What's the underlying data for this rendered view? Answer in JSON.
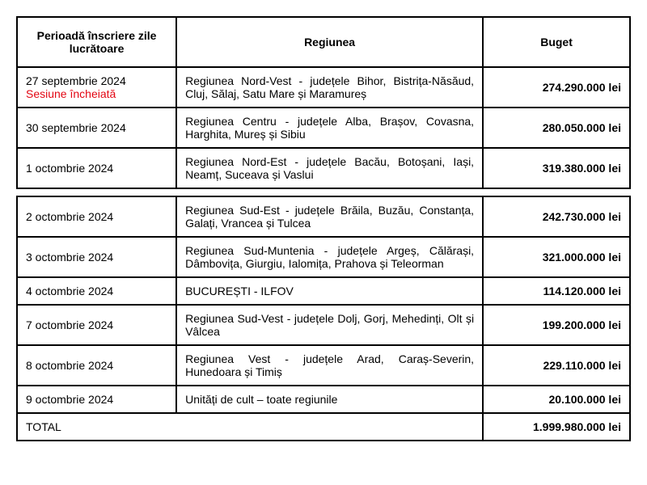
{
  "table": {
    "headers": {
      "period": "Perioadă înscriere zile lucrătoare",
      "region": "Regiunea",
      "budget": "Buget"
    },
    "columns": {
      "period_width": "26%",
      "region_width": "50%",
      "budget_width": "24%"
    },
    "colors": {
      "border": "#000000",
      "text": "#000000",
      "status_closed": "#e30613",
      "background": "#ffffff"
    },
    "typography": {
      "font_family": "Arial",
      "base_fontsize": 14,
      "header_weight": "bold",
      "budget_weight": "bold"
    },
    "rows": [
      {
        "date": "27 septembrie 2024",
        "status": "Sesiune încheiată",
        "region": "Regiunea Nord-Vest - județele Bihor, Bistrița-Năsăud, Cluj, Sălaj, Satu Mare și Maramureș",
        "budget": "274.290.000 lei"
      },
      {
        "date": "30 septembrie 2024",
        "status": "",
        "region": "Regiunea Centru - județele Alba, Brașov, Covasna, Harghita, Mureș și Sibiu",
        "budget": "280.050.000 lei"
      },
      {
        "date": "1 octombrie 2024",
        "status": "",
        "region": "Regiunea Nord-Est - județele Bacău, Botoșani, Iași, Neamț, Suceava și Vaslui",
        "budget": "319.380.000 lei"
      },
      {
        "date": "2 octombrie 2024",
        "status": "",
        "region": "Regiunea Sud-Est - județele Brăila, Buzău, Constanța, Galați, Vrancea și Tulcea",
        "budget": "242.730.000 lei"
      },
      {
        "date": "3 octombrie 2024",
        "status": "",
        "region": "Regiunea Sud-Muntenia - județele Argeș, Călărași, Dâmbovița, Giurgiu, Ialomița, Prahova și Teleorman",
        "budget": "321.000.000 lei"
      },
      {
        "date": "4 octombrie 2024",
        "status": "",
        "region": "BUCUREȘTI - ILFOV",
        "budget": "114.120.000 lei"
      },
      {
        "date": "7 octombrie 2024",
        "status": "",
        "region": "Regiunea Sud-Vest - județele Dolj, Gorj, Mehedinți, Olt și Vâlcea",
        "budget": "199.200.000 lei"
      },
      {
        "date": "8 octombrie 2024",
        "status": "",
        "region": "Regiunea Vest - județele Arad, Caraș-Severin, Hunedoara și Timiș",
        "budget": "229.110.000 lei"
      },
      {
        "date": "9 octombrie 2024",
        "status": "",
        "region": "Unități de cult – toate regiunile",
        "budget": "20.100.000 lei"
      }
    ],
    "total": {
      "label": "TOTAL",
      "value": "1.999.980.000 lei"
    }
  }
}
